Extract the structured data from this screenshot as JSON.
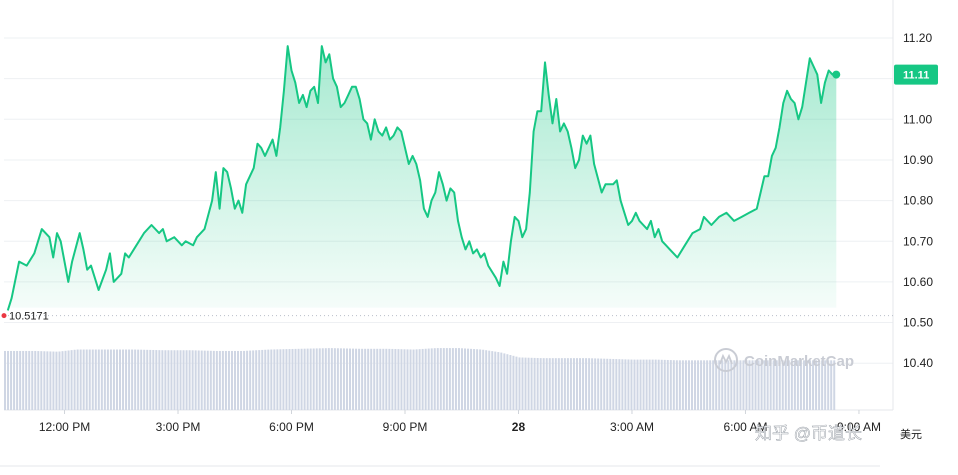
{
  "chart_data": {
    "type": "line",
    "y_axis": {
      "min": 10.34,
      "max": 11.25,
      "ticks": [
        "11.20",
        "11.10",
        "11.00",
        "10.90",
        "10.80",
        "10.70",
        "10.60",
        "10.50",
        "10.40"
      ],
      "tick_values": [
        11.2,
        11.1,
        11.0,
        10.9,
        10.8,
        10.7,
        10.6,
        10.5,
        10.4
      ]
    },
    "x_axis": {
      "range_hours": [
        -13.6,
        9.9
      ],
      "ticks": [
        {
          "label": "12:00 PM",
          "hour": -12,
          "bold": false
        },
        {
          "label": "3:00 PM",
          "hour": -9,
          "bold": false
        },
        {
          "label": "6:00 PM",
          "hour": -6,
          "bold": false
        },
        {
          "label": "9:00 PM",
          "hour": -3,
          "bold": false
        },
        {
          "label": "28",
          "hour": 0,
          "bold": true
        },
        {
          "label": "3:00 AM",
          "hour": 3,
          "bold": false
        },
        {
          "label": "6:00 AM",
          "hour": 6,
          "bold": false
        },
        {
          "label": "9:00 AM",
          "hour": 9,
          "bold": false
        }
      ]
    },
    "start_price_label": "10.5171",
    "start_price": 10.5171,
    "current_price_label": "11.11",
    "current_price": 11.11,
    "grid": true,
    "series": [
      {
        "color": "#16c784",
        "points": [
          [
            -13.5,
            10.53
          ],
          [
            -13.4,
            10.56
          ],
          [
            -13.2,
            10.65
          ],
          [
            -13.0,
            10.64
          ],
          [
            -12.8,
            10.67
          ],
          [
            -12.6,
            10.73
          ],
          [
            -12.4,
            10.71
          ],
          [
            -12.3,
            10.66
          ],
          [
            -12.2,
            10.72
          ],
          [
            -12.1,
            10.7
          ],
          [
            -11.9,
            10.6
          ],
          [
            -11.8,
            10.65
          ],
          [
            -11.6,
            10.72
          ],
          [
            -11.5,
            10.68
          ],
          [
            -11.4,
            10.63
          ],
          [
            -11.3,
            10.64
          ],
          [
            -11.1,
            10.58
          ],
          [
            -10.9,
            10.63
          ],
          [
            -10.8,
            10.67
          ],
          [
            -10.7,
            10.6
          ],
          [
            -10.5,
            10.62
          ],
          [
            -10.4,
            10.67
          ],
          [
            -10.3,
            10.66
          ],
          [
            -10.1,
            10.69
          ],
          [
            -9.9,
            10.72
          ],
          [
            -9.7,
            10.74
          ],
          [
            -9.5,
            10.72
          ],
          [
            -9.4,
            10.73
          ],
          [
            -9.3,
            10.7
          ],
          [
            -9.1,
            10.71
          ],
          [
            -8.9,
            10.69
          ],
          [
            -8.8,
            10.7
          ],
          [
            -8.6,
            10.69
          ],
          [
            -8.5,
            10.71
          ],
          [
            -8.3,
            10.73
          ],
          [
            -8.1,
            10.8
          ],
          [
            -8.0,
            10.87
          ],
          [
            -7.9,
            10.78
          ],
          [
            -7.8,
            10.88
          ],
          [
            -7.7,
            10.87
          ],
          [
            -7.6,
            10.83
          ],
          [
            -7.5,
            10.78
          ],
          [
            -7.4,
            10.8
          ],
          [
            -7.3,
            10.77
          ],
          [
            -7.2,
            10.84
          ],
          [
            -7.0,
            10.88
          ],
          [
            -6.9,
            10.94
          ],
          [
            -6.8,
            10.93
          ],
          [
            -6.7,
            10.91
          ],
          [
            -6.6,
            10.93
          ],
          [
            -6.5,
            10.95
          ],
          [
            -6.4,
            10.91
          ],
          [
            -6.3,
            10.98
          ],
          [
            -6.2,
            11.07
          ],
          [
            -6.1,
            11.18
          ],
          [
            -6.0,
            11.12
          ],
          [
            -5.9,
            11.09
          ],
          [
            -5.8,
            11.04
          ],
          [
            -5.7,
            11.06
          ],
          [
            -5.6,
            11.03
          ],
          [
            -5.5,
            11.07
          ],
          [
            -5.4,
            11.08
          ],
          [
            -5.3,
            11.04
          ],
          [
            -5.2,
            11.18
          ],
          [
            -5.1,
            11.14
          ],
          [
            -5.0,
            11.16
          ],
          [
            -4.9,
            11.1
          ],
          [
            -4.8,
            11.08
          ],
          [
            -4.7,
            11.03
          ],
          [
            -4.6,
            11.04
          ],
          [
            -4.5,
            11.06
          ],
          [
            -4.4,
            11.08
          ],
          [
            -4.3,
            11.08
          ],
          [
            -4.2,
            11.05
          ],
          [
            -4.1,
            11.0
          ],
          [
            -4.0,
            10.99
          ],
          [
            -3.9,
            10.95
          ],
          [
            -3.8,
            11.0
          ],
          [
            -3.7,
            10.97
          ],
          [
            -3.6,
            10.96
          ],
          [
            -3.5,
            10.98
          ],
          [
            -3.4,
            10.95
          ],
          [
            -3.3,
            10.96
          ],
          [
            -3.2,
            10.98
          ],
          [
            -3.1,
            10.97
          ],
          [
            -3.0,
            10.93
          ],
          [
            -2.9,
            10.89
          ],
          [
            -2.8,
            10.91
          ],
          [
            -2.7,
            10.89
          ],
          [
            -2.6,
            10.85
          ],
          [
            -2.5,
            10.78
          ],
          [
            -2.4,
            10.76
          ],
          [
            -2.3,
            10.8
          ],
          [
            -2.2,
            10.82
          ],
          [
            -2.1,
            10.87
          ],
          [
            -2.0,
            10.84
          ],
          [
            -1.9,
            10.8
          ],
          [
            -1.8,
            10.83
          ],
          [
            -1.7,
            10.82
          ],
          [
            -1.6,
            10.75
          ],
          [
            -1.5,
            10.71
          ],
          [
            -1.4,
            10.68
          ],
          [
            -1.3,
            10.7
          ],
          [
            -1.2,
            10.67
          ],
          [
            -1.1,
            10.68
          ],
          [
            -1.0,
            10.66
          ],
          [
            -0.9,
            10.67
          ],
          [
            -0.8,
            10.64
          ],
          [
            -0.6,
            10.61
          ],
          [
            -0.5,
            10.59
          ],
          [
            -0.4,
            10.65
          ],
          [
            -0.3,
            10.62
          ],
          [
            -0.2,
            10.7
          ],
          [
            -0.1,
            10.76
          ],
          [
            0.0,
            10.75
          ],
          [
            0.1,
            10.71
          ],
          [
            0.2,
            10.73
          ],
          [
            0.3,
            10.82
          ],
          [
            0.4,
            10.97
          ],
          [
            0.5,
            11.02
          ],
          [
            0.6,
            11.02
          ],
          [
            0.7,
            11.14
          ],
          [
            0.8,
            11.06
          ],
          [
            0.9,
            10.99
          ],
          [
            1.0,
            11.05
          ],
          [
            1.1,
            10.97
          ],
          [
            1.2,
            10.99
          ],
          [
            1.3,
            10.97
          ],
          [
            1.4,
            10.93
          ],
          [
            1.5,
            10.88
          ],
          [
            1.6,
            10.9
          ],
          [
            1.7,
            10.96
          ],
          [
            1.8,
            10.94
          ],
          [
            1.9,
            10.96
          ],
          [
            2.0,
            10.89
          ],
          [
            2.2,
            10.82
          ],
          [
            2.3,
            10.84
          ],
          [
            2.5,
            10.84
          ],
          [
            2.6,
            10.85
          ],
          [
            2.7,
            10.8
          ],
          [
            2.8,
            10.77
          ],
          [
            2.9,
            10.74
          ],
          [
            3.0,
            10.75
          ],
          [
            3.1,
            10.77
          ],
          [
            3.2,
            10.75
          ],
          [
            3.3,
            10.74
          ],
          [
            3.4,
            10.73
          ],
          [
            3.5,
            10.75
          ],
          [
            3.6,
            10.71
          ],
          [
            3.7,
            10.73
          ],
          [
            3.8,
            10.7
          ],
          [
            3.9,
            10.69
          ],
          [
            4.0,
            10.68
          ],
          [
            4.2,
            10.66
          ],
          [
            4.4,
            10.69
          ],
          [
            4.6,
            10.72
          ],
          [
            4.8,
            10.73
          ],
          [
            4.9,
            10.76
          ],
          [
            5.1,
            10.74
          ],
          [
            5.3,
            10.76
          ],
          [
            5.5,
            10.77
          ],
          [
            5.7,
            10.75
          ],
          [
            5.9,
            10.76
          ],
          [
            6.1,
            10.77
          ],
          [
            6.3,
            10.78
          ],
          [
            6.4,
            10.82
          ],
          [
            6.5,
            10.86
          ],
          [
            6.6,
            10.86
          ],
          [
            6.7,
            10.91
          ],
          [
            6.8,
            10.93
          ],
          [
            6.9,
            10.98
          ],
          [
            7.0,
            11.04
          ],
          [
            7.1,
            11.07
          ],
          [
            7.2,
            11.05
          ],
          [
            7.3,
            11.04
          ],
          [
            7.4,
            11.0
          ],
          [
            7.5,
            11.03
          ],
          [
            7.6,
            11.09
          ],
          [
            7.7,
            11.15
          ],
          [
            7.8,
            11.13
          ],
          [
            7.9,
            11.11
          ],
          [
            8.0,
            11.04
          ],
          [
            8.1,
            11.09
          ],
          [
            8.2,
            11.12
          ],
          [
            8.3,
            11.11
          ],
          [
            8.4,
            11.11
          ]
        ]
      }
    ],
    "volume": {
      "color": "#cfd6e4",
      "bars": [
        [
          -13.6,
          0.82
        ],
        [
          -12.8,
          0.82
        ],
        [
          -12.2,
          0.81
        ],
        [
          -11.7,
          0.84
        ],
        [
          -11.0,
          0.84
        ],
        [
          -10.2,
          0.84
        ],
        [
          -9.4,
          0.83
        ],
        [
          -8.7,
          0.83
        ],
        [
          -8.0,
          0.82
        ],
        [
          -7.3,
          0.82
        ],
        [
          -6.6,
          0.84
        ],
        [
          -5.8,
          0.85
        ],
        [
          -5.0,
          0.86
        ],
        [
          -4.2,
          0.85
        ],
        [
          -3.5,
          0.85
        ],
        [
          -2.8,
          0.84
        ],
        [
          -2.2,
          0.86
        ],
        [
          -1.6,
          0.86
        ],
        [
          -1.0,
          0.84
        ],
        [
          -0.5,
          0.8
        ],
        [
          0.0,
          0.73
        ],
        [
          0.6,
          0.72
        ],
        [
          1.2,
          0.72
        ],
        [
          1.8,
          0.72
        ],
        [
          2.4,
          0.71
        ],
        [
          3.0,
          0.7
        ],
        [
          3.6,
          0.7
        ],
        [
          4.2,
          0.69
        ],
        [
          4.8,
          0.69
        ],
        [
          5.4,
          0.69
        ],
        [
          6.0,
          0.69
        ],
        [
          6.6,
          0.69
        ],
        [
          7.2,
          0.69
        ],
        [
          7.8,
          0.69
        ],
        [
          8.4,
          0.69
        ]
      ]
    }
  },
  "watermark": {
    "brand": "CoinMarketCap",
    "overlay_text": "知乎 @币道长",
    "currency_label": "美元"
  }
}
